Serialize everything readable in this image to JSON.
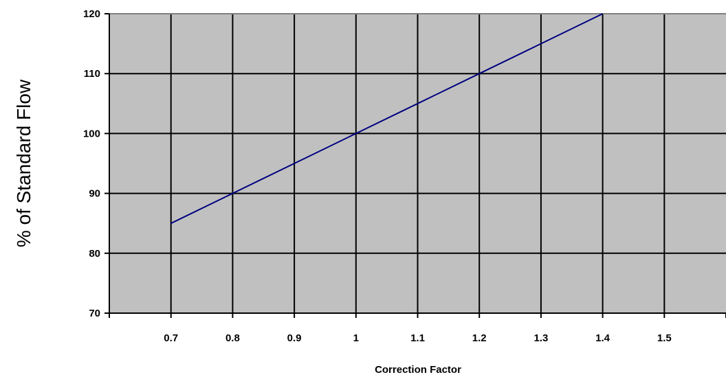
{
  "chart_data": {
    "type": "line",
    "title": "",
    "xlabel": "Correction Factor",
    "ylabel": "% of Standard Flow",
    "xlim": [
      0.6,
      1.6
    ],
    "ylim": [
      70,
      120
    ],
    "x_ticks": [
      0.7,
      0.8,
      0.9,
      1,
      1.1,
      1.2,
      1.3,
      1.4,
      1.5
    ],
    "x_tick_labels": [
      "0.7",
      "0.8",
      "0.9",
      "1",
      "1.1",
      "1.2",
      "1.3",
      "1.4",
      "1.5"
    ],
    "y_ticks": [
      70,
      80,
      90,
      100,
      110,
      120
    ],
    "y_tick_labels": [
      "70",
      "80",
      "90",
      "100",
      "110",
      "120"
    ],
    "grid": true,
    "legend": "none",
    "series": [
      {
        "x": [
          0.7,
          0.8,
          0.9,
          1.0,
          1.1,
          1.2,
          1.3,
          1.4
        ],
        "y": [
          85,
          90,
          95,
          100,
          105,
          110,
          115,
          120
        ]
      }
    ],
    "colors": {
      "plot_background": "#c0c0c0",
      "line": "#000080",
      "grid": "#000000",
      "border": "#808080"
    }
  }
}
